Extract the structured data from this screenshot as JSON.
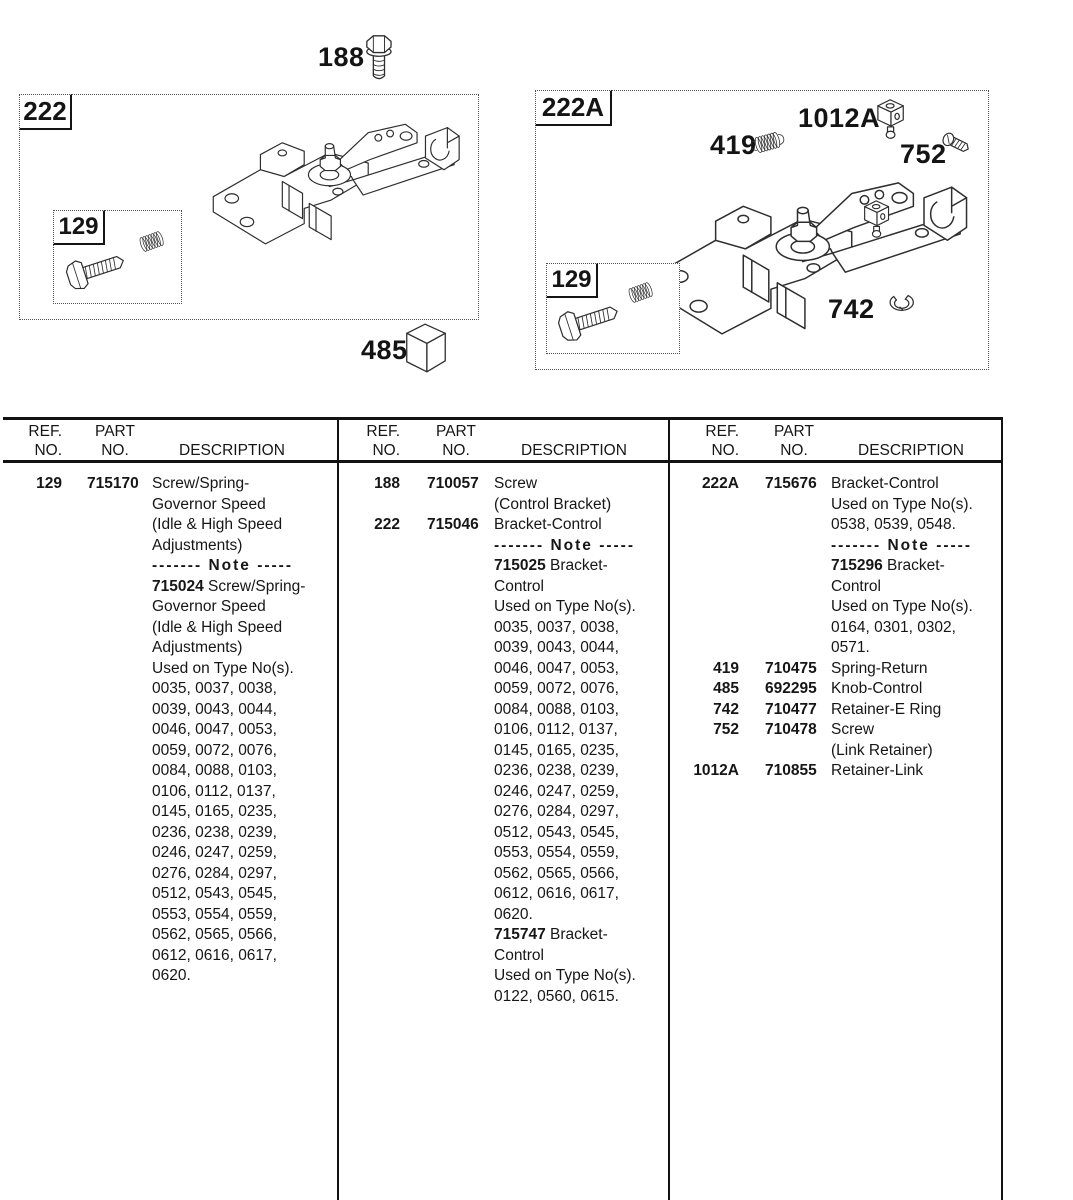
{
  "page": {
    "background": "#ffffff",
    "ink": "#1a1a1a",
    "rule_color": "#121212"
  },
  "figures": {
    "callout_188": "188",
    "box_222": "222",
    "box_222a": "222A",
    "inset_129": "129",
    "callout_419": "419",
    "callout_485": "485",
    "callout_742": "742",
    "callout_752": "752",
    "callout_1012a": "1012A",
    "icons": [
      "hex-screw",
      "governor-bracket-drawing",
      "bolt",
      "spring",
      "knob-cube",
      "cube-with-stud",
      "return-spring",
      "link-screw",
      "e-ring"
    ]
  },
  "table": {
    "headers": {
      "ref": [
        "REF.",
        "NO."
      ],
      "part": [
        "PART",
        "NO."
      ],
      "desc": "DESCRIPTION"
    },
    "columns": [
      {
        "rows": [
          {
            "ref": "129",
            "part": "715170",
            "lines": [
              "Screw/Spring-",
              "Governor Speed",
              "(Idle & High Speed",
              "Adjustments)",
              {
                "note": "------- Note -----"
              },
              {
                "b": "715024",
                "t": " Screw/Spring-"
              },
              "Governor Speed",
              "(Idle & High Speed",
              "Adjustments)",
              "Used on Type No(s).",
              "0035, 0037, 0038,",
              "0039, 0043, 0044,",
              "0046, 0047, 0053,",
              "0059, 0072, 0076,",
              "0084, 0088, 0103,",
              "0106, 0112, 0137,",
              "0145, 0165, 0235,",
              "0236, 0238, 0239,",
              "0246, 0247, 0259,",
              "0276, 0284, 0297,",
              "0512, 0543, 0545,",
              "0553, 0554, 0559,",
              "0562, 0565, 0566,",
              "0612, 0616, 0617,",
              "0620."
            ]
          }
        ]
      },
      {
        "rows": [
          {
            "ref": "188",
            "part": "710057",
            "lines": [
              "Screw",
              "(Control Bracket)"
            ]
          },
          {
            "ref": "222",
            "part": "715046",
            "lines": [
              "Bracket-Control",
              {
                "note": "------- Note -----"
              },
              {
                "b": "715025",
                "t": " Bracket-"
              },
              "Control",
              "Used on Type No(s).",
              "0035, 0037, 0038,",
              "0039, 0043, 0044,",
              "0046, 0047, 0053,",
              "0059, 0072, 0076,",
              "0084, 0088, 0103,",
              "0106, 0112, 0137,",
              "0145, 0165, 0235,",
              "0236, 0238, 0239,",
              "0246, 0247, 0259,",
              "0276, 0284, 0297,",
              "0512, 0543, 0545,",
              "0553, 0554, 0559,",
              "0562, 0565, 0566,",
              "0612, 0616, 0617,",
              "0620.",
              {
                "b": "715747",
                "t": " Bracket-"
              },
              "Control",
              "Used on Type No(s).",
              "0122, 0560, 0615."
            ]
          }
        ]
      },
      {
        "rows": [
          {
            "ref": "222A",
            "part": "715676",
            "lines": [
              "Bracket-Control",
              "Used on Type No(s).",
              "0538, 0539, 0548.",
              {
                "note": "------- Note -----"
              },
              {
                "b": "715296",
                "t": " Bracket-"
              },
              "Control",
              "Used on Type No(s).",
              "0164, 0301, 0302,",
              "0571."
            ]
          },
          {
            "ref": "419",
            "part": "710475",
            "lines": [
              "Spring-Return"
            ]
          },
          {
            "ref": "485",
            "part": "692295",
            "lines": [
              "Knob-Control"
            ]
          },
          {
            "ref": "742",
            "part": "710477",
            "lines": [
              "Retainer-E Ring"
            ]
          },
          {
            "ref": "752",
            "part": "710478",
            "lines": [
              "Screw",
              "(Link Retainer)"
            ]
          },
          {
            "ref": "1012A",
            "part": "710855",
            "lines": [
              "Retainer-Link"
            ]
          }
        ]
      }
    ]
  }
}
